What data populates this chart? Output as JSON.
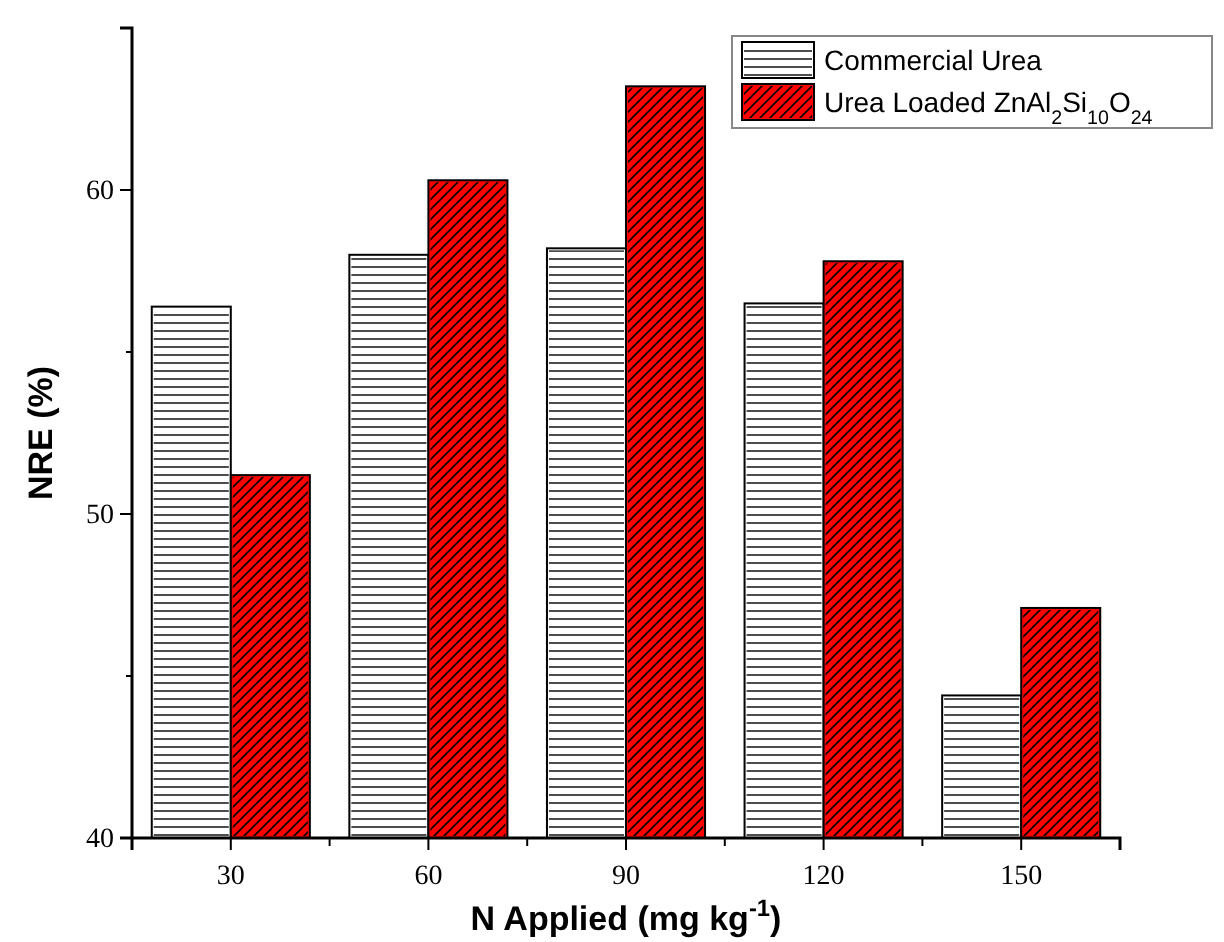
{
  "chart_data": {
    "type": "bar",
    "categories": [
      "30",
      "60",
      "90",
      "120",
      "150"
    ],
    "series": [
      {
        "name": "Commercial Urea",
        "color": "#ffffff",
        "values": [
          56.4,
          58.0,
          58.2,
          56.5,
          44.4
        ]
      },
      {
        "name": "Urea Loaded ZnAl$_{2}$Si$_{10}$O$_{24}$",
        "color": "#ff0000",
        "values": [
          51.2,
          60.3,
          63.2,
          57.8,
          47.1
        ]
      }
    ],
    "xlabel": "N Applied (mg kg$^{-1}$)",
    "ylabel": "NRE (%)",
    "ylim": [
      40,
      65
    ],
    "yticks": [
      40,
      {
        "value": 45,
        "label": null
      },
      50,
      {
        "value": 55,
        "label": null
      },
      60,
      {
        "value": 65,
        "label": null
      }
    ],
    "legend": "top right",
    "grid": false
  }
}
